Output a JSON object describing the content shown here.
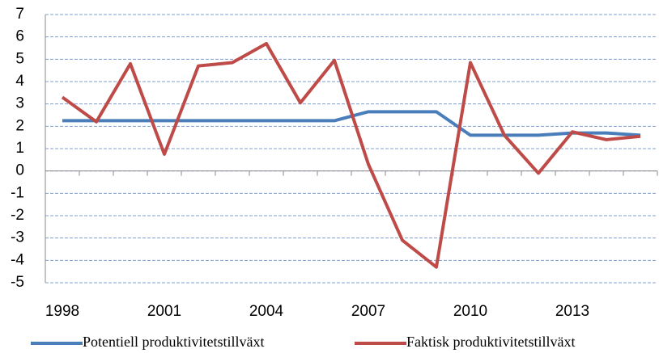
{
  "chart_data": {
    "type": "line",
    "x": [
      1998,
      1999,
      2000,
      2001,
      2002,
      2003,
      2004,
      2005,
      2006,
      2007,
      2008,
      2009,
      2010,
      2011,
      2012,
      2013,
      2014,
      2015
    ],
    "series": [
      {
        "name": "Potentiell produktivitetstillväxt",
        "color": "#4a7ebb",
        "values": [
          2.25,
          2.25,
          2.25,
          2.25,
          2.25,
          2.25,
          2.25,
          2.25,
          2.25,
          2.65,
          2.65,
          2.65,
          1.6,
          1.6,
          1.6,
          1.7,
          1.7,
          1.6
        ]
      },
      {
        "name": "Faktisk produktivitetstillväxt",
        "color": "#be4b48",
        "values": [
          3.3,
          2.2,
          4.8,
          0.75,
          4.7,
          4.85,
          5.7,
          3.05,
          4.95,
          0.3,
          -3.1,
          -4.3,
          4.85,
          1.6,
          -0.1,
          1.75,
          1.4,
          1.55
        ]
      }
    ],
    "xlim": [
      1997.5,
      2015.5
    ],
    "xticks": [
      1998,
      2001,
      2004,
      2007,
      2010,
      2013
    ],
    "ylim": [
      -5,
      7
    ],
    "yticks": [
      -5,
      -4,
      -3,
      -2,
      -1,
      0,
      1,
      2,
      3,
      4,
      5,
      6,
      7
    ],
    "grid": true,
    "legend": "bottom"
  }
}
